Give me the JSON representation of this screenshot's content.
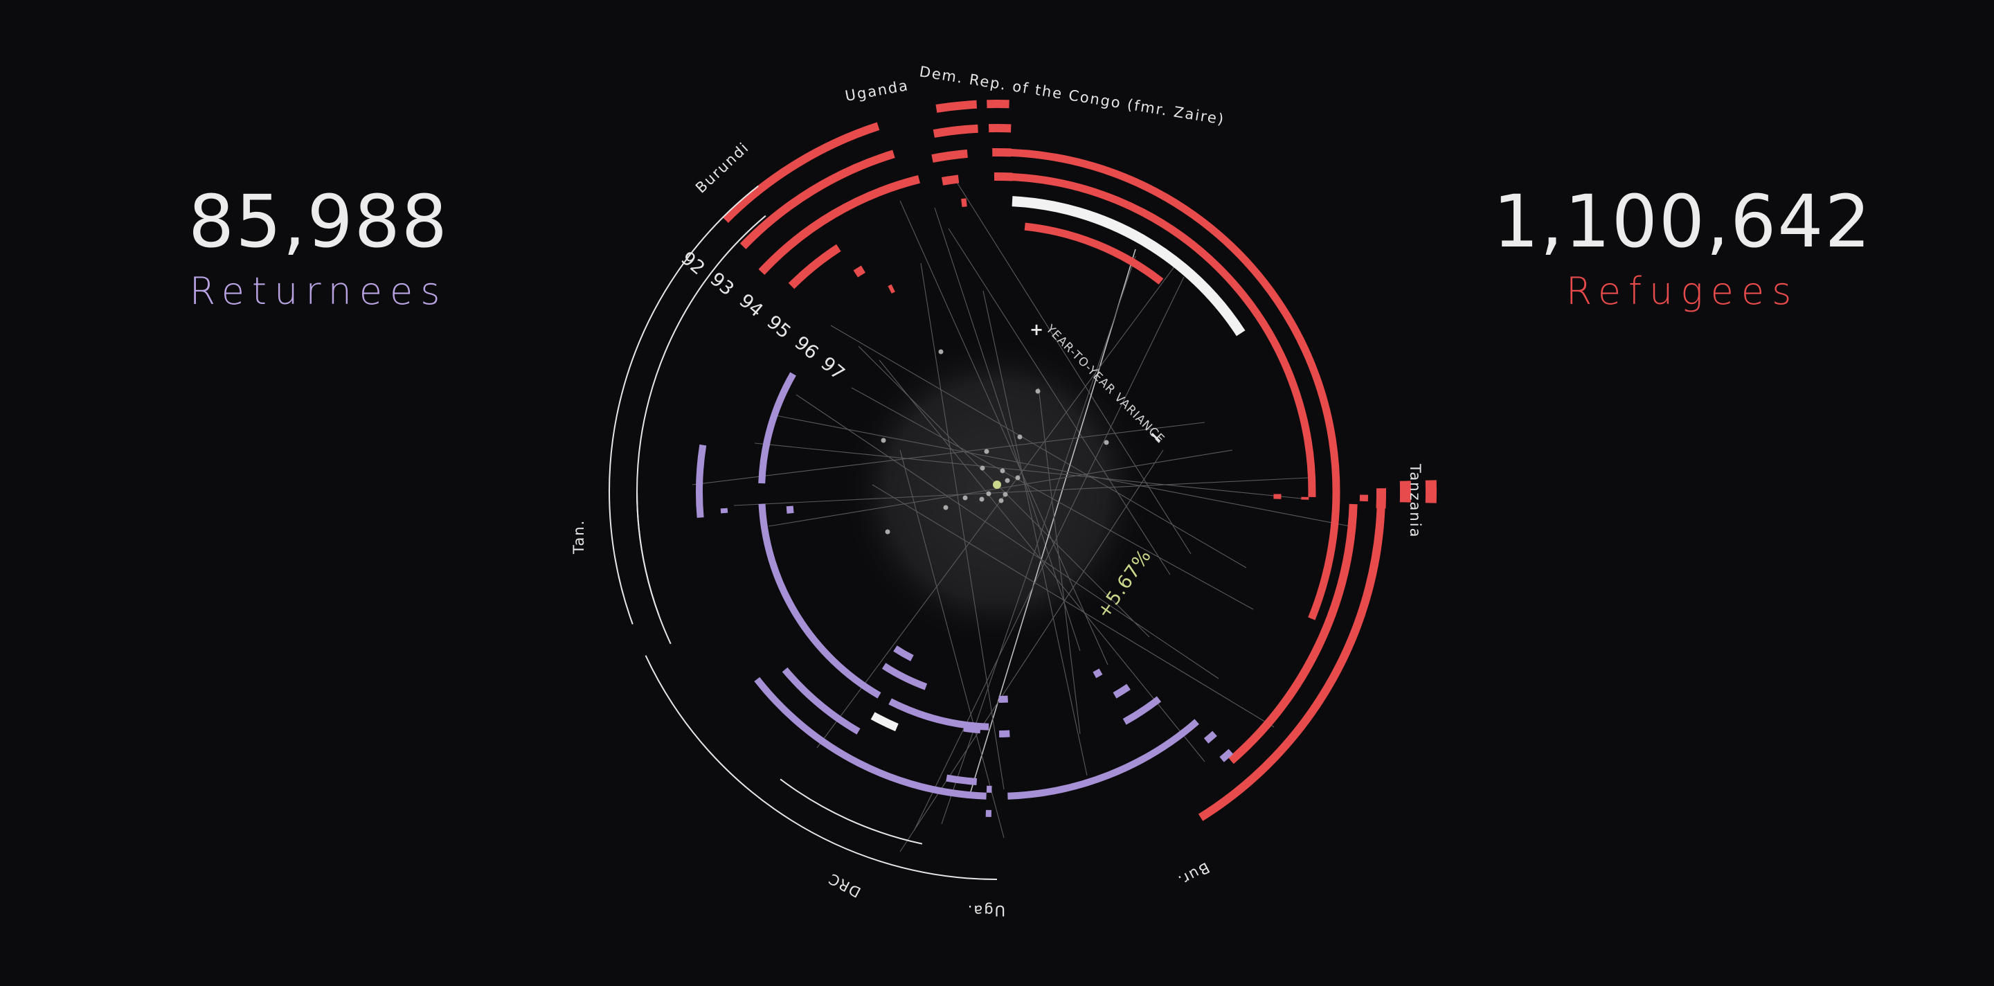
{
  "summary": {
    "returnees": {
      "value": "85,988",
      "label": "Returnees",
      "color": "#b9a3e3"
    },
    "refugees": {
      "value": "1,100,642",
      "label": "Refugees",
      "color": "#e84b4b"
    }
  },
  "colors": {
    "refugee": "#e84b4b",
    "returnee": "#a791d6",
    "highlight": "#f2f2f2",
    "variance": "#c9d88a",
    "text": "#e6e6e6"
  },
  "chart_data": {
    "type": "radial",
    "years": [
      "92",
      "93",
      "94",
      "95",
      "96",
      "97"
    ],
    "highlight_year": "97",
    "variance": {
      "label": "YEAR-TO-YEAR VARIANCE",
      "plus": "+",
      "minus": "−",
      "value": "+5.67%"
    },
    "refugee_countries": [
      {
        "name": "Uganda",
        "ring_values": []
      },
      {
        "name": "Dem. Rep. of the Congo (fmr. Zaire)",
        "ring_values": []
      },
      {
        "name": "Burundi",
        "ring_values": []
      },
      {
        "name": "Tanzania",
        "ring_values": []
      }
    ],
    "returnee_countries": [
      "Tan.",
      "DRC",
      "Uga.",
      "Bur."
    ]
  }
}
